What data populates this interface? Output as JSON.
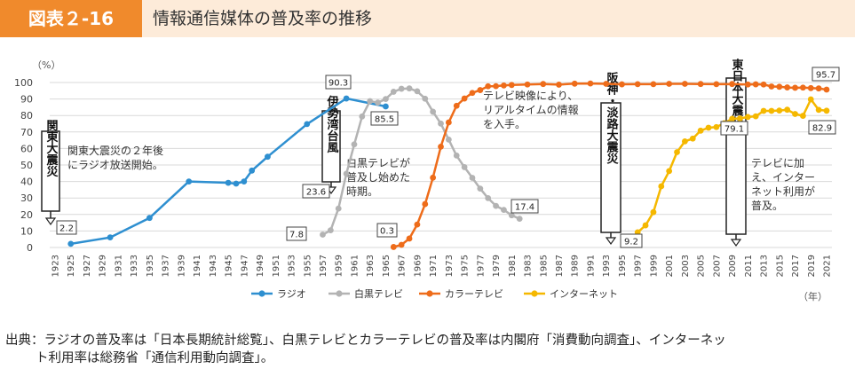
{
  "header": {
    "figure_no": "図表２-16",
    "title": "情報通信媒体の普及率の推移"
  },
  "footer": {
    "line1": "出典：ラジオの普及率は「日本長期統計総覧」、白黒テレビとカラーテレビの普及率は内閣府「消費動向調査」、インターネッ",
    "line2": "ト利用率は総務省「通信利用動向調査」。"
  },
  "chart_data": {
    "type": "line",
    "ylabel": "（%）",
    "xlabel": "（年）",
    "ylim": [
      0,
      100
    ],
    "yticks": [
      0,
      10,
      20,
      30,
      40,
      50,
      60,
      70,
      80,
      90,
      100
    ],
    "xlim": [
      1923,
      2021
    ],
    "xticks": [
      1923,
      1925,
      1927,
      1929,
      1931,
      1933,
      1935,
      1937,
      1939,
      1941,
      1943,
      1945,
      1947,
      1949,
      1951,
      1953,
      1955,
      1957,
      1959,
      1961,
      1963,
      1965,
      1967,
      1969,
      1971,
      1973,
      1975,
      1977,
      1979,
      1981,
      1983,
      1985,
      1987,
      1989,
      1991,
      1993,
      1995,
      1997,
      1999,
      2001,
      2003,
      2005,
      2007,
      2009,
      2011,
      2013,
      2015,
      2017,
      2019,
      2021
    ],
    "grid": true,
    "legend_position": "bottom",
    "series": [
      {
        "name": "ラジオ",
        "color": "#2e8fd0",
        "x": [
          1925,
          1930,
          1935,
          1940,
          1945,
          1946,
          1947,
          1948,
          1950,
          1955,
          1960,
          1965
        ],
        "y": [
          2.2,
          6.1,
          17.9,
          40.0,
          39.2,
          38.7,
          40.0,
          46.6,
          55.0,
          74.8,
          90.3,
          85.5
        ]
      },
      {
        "name": "白黒テレビ",
        "color": "#b3b3b3",
        "x": [
          1957,
          1958,
          1959,
          1960,
          1961,
          1962,
          1963,
          1964,
          1965,
          1966,
          1967,
          1968,
          1969,
          1970,
          1971,
          1972,
          1973,
          1974,
          1975,
          1976,
          1977,
          1978,
          1979,
          1980,
          1981,
          1982
        ],
        "y": [
          7.8,
          10.4,
          23.6,
          44.7,
          62.5,
          79.4,
          88.7,
          87.8,
          90.0,
          94.4,
          96.2,
          96.4,
          94.7,
          90.2,
          82.3,
          75.1,
          65.4,
          55.7,
          48.7,
          42.2,
          35.7,
          29.9,
          25.2,
          22.8,
          19.5,
          17.4
        ]
      },
      {
        "name": "カラーテレビ",
        "color": "#ee6c1a",
        "x": [
          1966,
          1967,
          1968,
          1969,
          1970,
          1971,
          1972,
          1973,
          1974,
          1975,
          1976,
          1977,
          1978,
          1979,
          1980,
          1981,
          1983,
          1985,
          1987,
          1989,
          1991,
          1993,
          1995,
          1997,
          1999,
          2001,
          2003,
          2005,
          2007,
          2009,
          2011,
          2012,
          2013,
          2014,
          2015,
          2016,
          2017,
          2018,
          2019,
          2020,
          2021
        ],
        "y": [
          0.3,
          1.6,
          5.4,
          13.9,
          26.3,
          42.3,
          61.1,
          75.8,
          85.9,
          90.3,
          93.7,
          95.4,
          97.7,
          97.8,
          98.2,
          98.5,
          98.8,
          99.1,
          98.7,
          99.3,
          99.4,
          99.2,
          98.9,
          99.0,
          99.0,
          99.2,
          99.2,
          99.1,
          99.0,
          99.1,
          98.8,
          98.9,
          98.8,
          97.6,
          97.4,
          97.0,
          96.8,
          96.9,
          96.6,
          96.4,
          95.7
        ]
      },
      {
        "name": "インターネット",
        "color": "#f5b800",
        "x": [
          1997,
          1998,
          1999,
          2000,
          2001,
          2002,
          2003,
          2004,
          2005,
          2006,
          2007,
          2008,
          2009,
          2010,
          2011,
          2012,
          2013,
          2014,
          2015,
          2016,
          2017,
          2018,
          2019,
          2020,
          2021
        ],
        "y": [
          9.2,
          13.4,
          21.4,
          37.1,
          46.3,
          57.8,
          64.3,
          66.0,
          70.8,
          72.6,
          73.0,
          75.3,
          78.0,
          78.2,
          79.1,
          79.5,
          82.8,
          82.8,
          83.0,
          83.5,
          80.9,
          79.8,
          89.8,
          83.4,
          82.9
        ]
      }
    ],
    "value_labels": [
      "2.2",
      "90.3",
      "85.5",
      "7.8",
      "23.6",
      "17.4",
      "0.3",
      "95.7",
      "9.2",
      "79.1",
      "82.9"
    ],
    "annotations": {
      "kanto_vertical": "関東大震災",
      "kanto_note_1": "関東大震災の２年後",
      "kanto_note_2": "にラジオ放送開始。",
      "isewan_vertical": "伊勢湾台風",
      "bw_note_1": "白黒テレビが",
      "bw_note_2": "普及し始めた",
      "bw_note_3": "時期。",
      "color_note_1": "テレビ映像により、",
      "color_note_2": "リアルタイムの情報",
      "color_note_3": "を入手。",
      "hanshin_vertical": "阪神・淡路大震災",
      "higashi_vertical": "東日本大震災",
      "net_note_1": "テレビに加",
      "net_note_2": "え、インター",
      "net_note_3": "ネット利用が",
      "net_note_4": "普及。"
    }
  }
}
